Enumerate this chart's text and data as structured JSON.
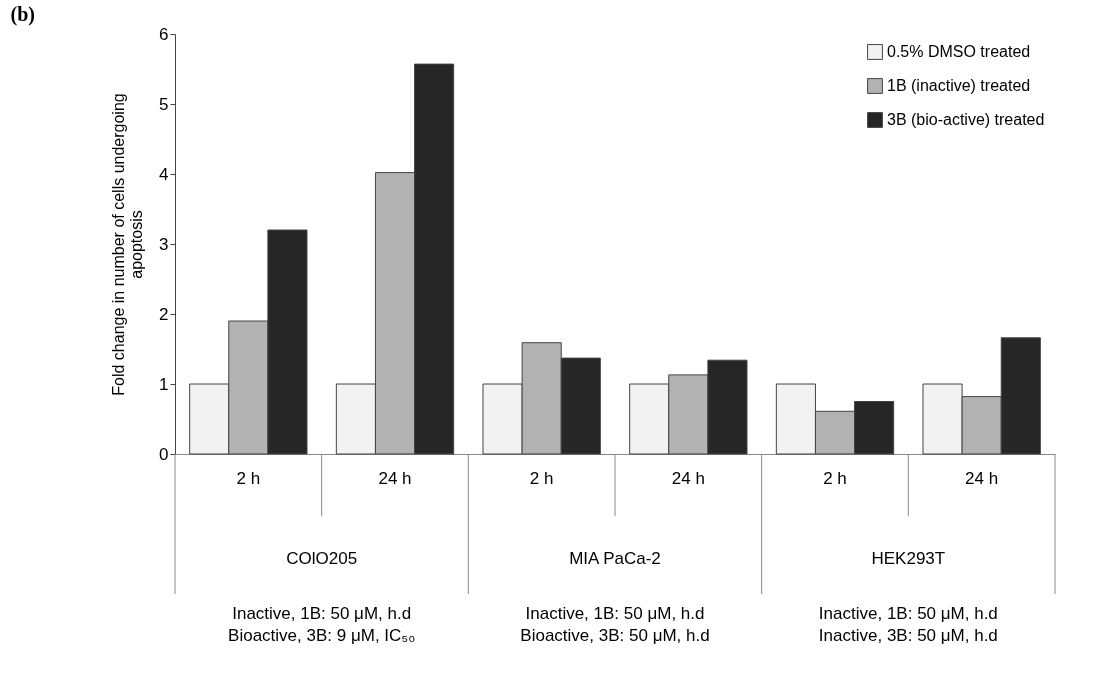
{
  "chart_data": {
    "type": "bar",
    "title": "(b)",
    "ylabel": "Fold change in number of cells undergoing apoptosis",
    "categories": [
      "2 h",
      "24 h",
      "2 h",
      "24 h",
      "2 h",
      "24 h"
    ],
    "series": [
      {
        "name": "0.5% DMSO treated",
        "color": "#f2f2f2",
        "values": [
          1,
          1,
          1,
          1,
          1,
          1
        ]
      },
      {
        "name": "1B (inactive) treated",
        "color": "#b2b2b2",
        "values": [
          1.9,
          4.02,
          1.59,
          1.13,
          0.61,
          0.82
        ]
      },
      {
        "name": "3B (bio-active) treated",
        "color": "#262626",
        "values": [
          3.2,
          5.57,
          1.37,
          1.34,
          0.75,
          1.66
        ]
      }
    ],
    "ylim": [
      0,
      6
    ],
    "yticks": [
      0,
      1,
      2,
      3,
      4,
      5,
      6
    ],
    "grid": false,
    "legend": "top right",
    "annotations": [
      "COlO205",
      "MIA PaCa-2",
      "HEK293T",
      "Inactive, 1B: 50 μM, h.d",
      "Bioactive, 3B: 9 μM, IC₅₀",
      "Inactive, 1B: 50 μM, h.d",
      "Bioactive, 3B: 50 μM, h.d",
      "Inactive, 1B: 50 μM, h.d",
      "Inactive, 3B: 50 μM, h.d"
    ]
  }
}
